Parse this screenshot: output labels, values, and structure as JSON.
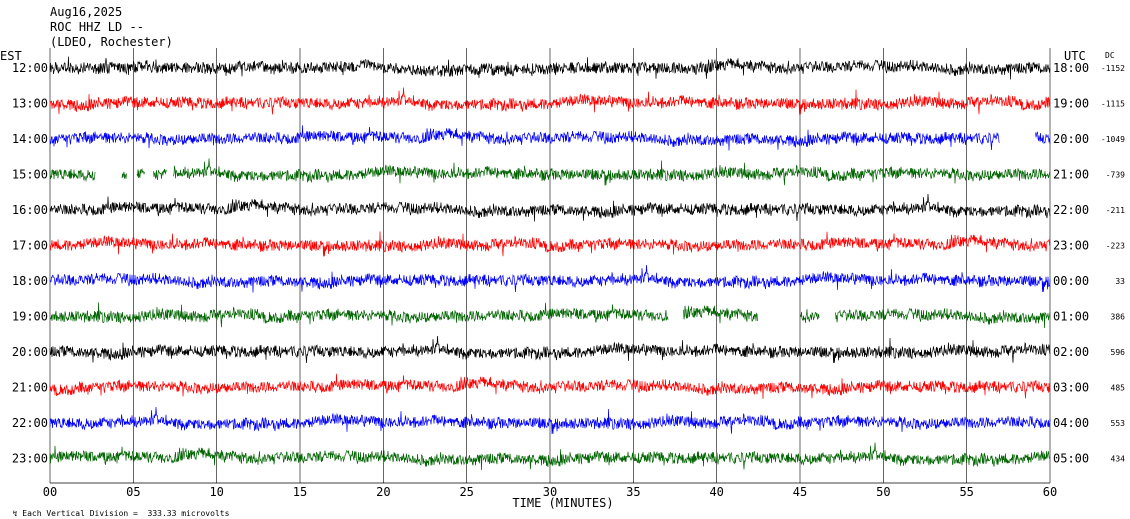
{
  "header": {
    "date": "Aug16,2025",
    "station": "ROC HHZ LD --",
    "network": "(LDEO, Rochester)"
  },
  "footer": {
    "scale_note": "Each Vertical Division =  333.33 microvolts"
  },
  "chart_data": {
    "type": "line",
    "title": "",
    "left_axis_label": "EST",
    "right_axis_label": "UTC",
    "dc_label": "DC",
    "xlabel": "TIME (MINUTES)",
    "xlim": [
      0,
      60
    ],
    "x_ticks": [
      "00",
      "05",
      "10",
      "15",
      "20",
      "25",
      "30",
      "35",
      "40",
      "45",
      "50",
      "55",
      "60"
    ],
    "grid": "vertical gridlines every 5 minutes",
    "colors": [
      "#000000",
      "#ff0000",
      "#0000ff",
      "#006400"
    ],
    "rows": [
      {
        "est": "12:00",
        "utc": "18:00",
        "dc": "-1152",
        "color": "#000000"
      },
      {
        "est": "13:00",
        "utc": "19:00",
        "dc": "-1115",
        "color": "#ff0000"
      },
      {
        "est": "14:00",
        "utc": "20:00",
        "dc": "-1049",
        "color": "#0000ff"
      },
      {
        "est": "15:00",
        "utc": "21:00",
        "dc": "-739",
        "color": "#006400"
      },
      {
        "est": "16:00",
        "utc": "22:00",
        "dc": "-211",
        "color": "#000000"
      },
      {
        "est": "17:00",
        "utc": "23:00",
        "dc": "-223",
        "color": "#ff0000"
      },
      {
        "est": "18:00",
        "utc": "00:00",
        "dc": "33",
        "color": "#0000ff"
      },
      {
        "est": "19:00",
        "utc": "01:00",
        "dc": "386",
        "color": "#006400"
      },
      {
        "est": "20:00",
        "utc": "02:00",
        "dc": "596",
        "color": "#000000"
      },
      {
        "est": "21:00",
        "utc": "03:00",
        "dc": "485",
        "color": "#ff0000"
      },
      {
        "est": "22:00",
        "utc": "04:00",
        "dc": "553",
        "color": "#0000ff"
      },
      {
        "est": "23:00",
        "utc": "05:00",
        "dc": "434",
        "color": "#006400"
      }
    ],
    "data_gaps_minutes": [
      {
        "row": 2,
        "from": 57.0,
        "to": 59.1
      },
      {
        "row": 3,
        "from": 2.7,
        "to": 4.3
      },
      {
        "row": 3,
        "from": 4.6,
        "to": 5.2
      },
      {
        "row": 3,
        "from": 5.7,
        "to": 6.2
      },
      {
        "row": 3,
        "from": 7.0,
        "to": 7.4
      },
      {
        "row": 7,
        "from": 37.1,
        "to": 38.0
      },
      {
        "row": 7,
        "from": 42.5,
        "to": 45.0
      },
      {
        "row": 7,
        "from": 46.2,
        "to": 47.1
      }
    ]
  }
}
